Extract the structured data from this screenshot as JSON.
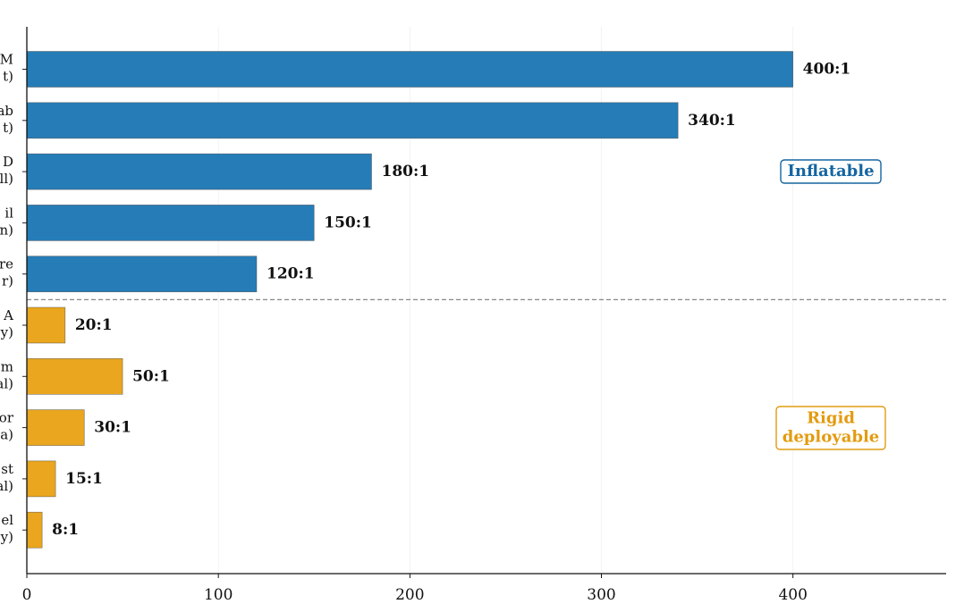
{
  "chart_data": {
    "type": "bar",
    "orientation": "horizontal",
    "categories": [
      {
        "line1": "M",
        "line2": "t)"
      },
      {
        "line1": "ab",
        "line2": "t)"
      },
      {
        "line1": "D",
        "line2": "ll)"
      },
      {
        "line1": "il",
        "line2": "n)"
      },
      {
        "line1": "re",
        "line2": "r)"
      },
      {
        "line1": "A",
        "line2": "y)"
      },
      {
        "line1": "m",
        "line2": "al)"
      },
      {
        "line1": "or",
        "line2": "a)"
      },
      {
        "line1": "st",
        "line2": "al)"
      },
      {
        "line1": "el",
        "line2": "y)"
      }
    ],
    "values": [
      400,
      340,
      180,
      150,
      120,
      20,
      50,
      30,
      15,
      8
    ],
    "value_labels": [
      "400:1",
      "340:1",
      "180:1",
      "150:1",
      "120:1",
      "20:1",
      "50:1",
      "30:1",
      "15:1",
      "8:1"
    ],
    "groups": [
      0,
      0,
      0,
      0,
      0,
      1,
      1,
      1,
      1,
      1
    ],
    "group_names": [
      "Inflatable",
      "Rigid\ndeployable"
    ],
    "group_colors": [
      "#1f78b4",
      "#e8a317"
    ],
    "group_label_colors": [
      "#1565a0",
      "#e39b10"
    ],
    "xlim": [
      0,
      480
    ],
    "xticks": [
      0,
      100,
      200,
      300,
      400
    ],
    "xtick_labels": [
      "0",
      "100",
      "200",
      "300",
      "400"
    ],
    "grid": "vertical",
    "separator": "dashed line between groups",
    "title": "",
    "xlabel": "",
    "ylabel": ""
  }
}
